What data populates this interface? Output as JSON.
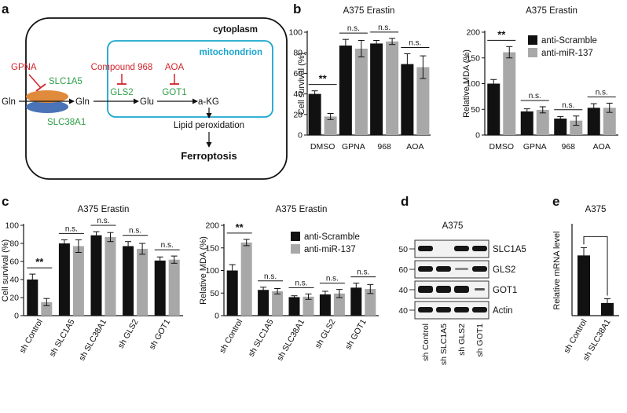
{
  "colors": {
    "scramble": "#111111",
    "mir137": "#a8a8a8",
    "inhibitor_red": "#d2232a",
    "transporter_green": "#2e9e48",
    "mitochondrion_cyan": "#1aa6cf",
    "transporter_orange": "#e08a3c",
    "transporter_blue": "#4a73b8"
  },
  "panel_a": {
    "label": "a",
    "cytoplasm": "cytoplasm",
    "mitochondrion": "mitochondrion",
    "gpna": "GPNA",
    "slc1a5": "SLC1A5",
    "slc38a1": "SLC38A1",
    "gln_out": "Gln",
    "gln_in": "Gln",
    "compound968": "Compound 968",
    "aoa": "AOA",
    "gls2": "GLS2",
    "got1": "GOT1",
    "glu": "Glu",
    "akg": "a-KG",
    "lipid": "Lipid peroxidation",
    "ferroptosis": "Ferroptosis"
  },
  "panel_b": {
    "label": "b",
    "legend": [
      "anti-Scramble",
      "anti-miR-137"
    ]
  },
  "panel_c": {
    "label": "c",
    "legend": [
      "anti-Scramble",
      "anti-miR-137"
    ]
  },
  "panel_d": {
    "label": "d",
    "title": "A375",
    "markers": [
      "50",
      "60",
      "40",
      "40"
    ],
    "proteins": [
      "SLC1A5",
      "GLS2",
      "GOT1",
      "Actin"
    ],
    "lanes": [
      "sh Control",
      "sh SLC1A5",
      "sh GLS2",
      "sh GOT1"
    ]
  },
  "panel_e": {
    "label": "e"
  },
  "chart_data": [
    {
      "id": "b_survival",
      "type": "bar",
      "title": "A375 Erastin",
      "ylabel": "Cell survival (%)",
      "ylim": [
        0,
        100
      ],
      "yticks": [
        0,
        20,
        40,
        60,
        80,
        100
      ],
      "categories": [
        "DMSO",
        "GPNA",
        "968",
        "AOA"
      ],
      "series": [
        {
          "name": "anti-Scramble",
          "values": [
            40,
            87,
            89,
            69
          ],
          "errors": [
            3,
            6,
            3,
            10
          ]
        },
        {
          "name": "anti-miR-137",
          "values": [
            18,
            84,
            91,
            66
          ],
          "errors": [
            3,
            8,
            3,
            11
          ]
        }
      ],
      "significance": [
        "**",
        "n.s.",
        "n.s.",
        "n.s."
      ]
    },
    {
      "id": "b_mda",
      "type": "bar",
      "title": "A375 Erastin",
      "ylabel": "Relative MDA (%)",
      "ylim": [
        0,
        200
      ],
      "yticks": [
        0,
        50,
        100,
        150,
        200
      ],
      "categories": [
        "DMSO",
        "GPNA",
        "968",
        "AOA"
      ],
      "series": [
        {
          "name": "anti-Scramble",
          "values": [
            100,
            46,
            32,
            53
          ],
          "errors": [
            8,
            5,
            4,
            8
          ]
        },
        {
          "name": "anti-miR-137",
          "values": [
            161,
            49,
            28,
            53
          ],
          "errors": [
            11,
            6,
            9,
            9
          ]
        }
      ],
      "significance": [
        "**",
        "n.s.",
        "n.s.",
        "n.s."
      ]
    },
    {
      "id": "c_survival",
      "type": "bar",
      "title": "A375 Erastin",
      "ylabel": "Cell survival (%)",
      "ylim": [
        0,
        100
      ],
      "yticks": [
        0,
        20,
        40,
        60,
        80,
        100
      ],
      "categories": [
        "sh Control",
        "sh SLC1A5",
        "sh SLC38A1",
        "sh GLS2",
        "sh GOT1"
      ],
      "series": [
        {
          "name": "anti-Scramble",
          "values": [
            40,
            80,
            89,
            77,
            61
          ],
          "errors": [
            6,
            4,
            4,
            5,
            4
          ]
        },
        {
          "name": "anti-miR-137",
          "values": [
            15,
            77,
            87,
            74,
            62
          ],
          "errors": [
            4,
            7,
            5,
            6,
            4
          ]
        }
      ],
      "significance": [
        "**",
        "n.s.",
        "n.s.",
        "n.s.",
        "n.s."
      ]
    },
    {
      "id": "c_mda",
      "type": "bar",
      "title": "A375 Erastin",
      "ylabel": "Relative MDA (%)",
      "ylim": [
        0,
        200
      ],
      "yticks": [
        0,
        50,
        100,
        150,
        200
      ],
      "categories": [
        "sh Control",
        "sh SLC1A5",
        "sh SLC38A1",
        "sh GLS2",
        "sh GOT1"
      ],
      "series": [
        {
          "name": "anti-Scramble",
          "values": [
            100,
            57,
            41,
            47,
            62
          ],
          "errors": [
            13,
            6,
            3,
            7,
            10
          ]
        },
        {
          "name": "anti-miR-137",
          "values": [
            162,
            54,
            42,
            49,
            59
          ],
          "errors": [
            7,
            6,
            6,
            9,
            10
          ]
        }
      ],
      "significance": [
        "**",
        "n.s.",
        "n.s.",
        "n.s.",
        "n.s."
      ]
    },
    {
      "id": "e_mrna",
      "type": "bar",
      "title": "A375",
      "ylabel": "Relative mRNA level",
      "ylim": [
        0,
        150
      ],
      "yticks": [],
      "categories": [
        "sh Control",
        "sh SLC38A1"
      ],
      "series": [
        {
          "name": "",
          "values": [
            100,
            21
          ],
          "errors": [
            13,
            7
          ]
        }
      ],
      "significance": [
        ""
      ]
    }
  ]
}
